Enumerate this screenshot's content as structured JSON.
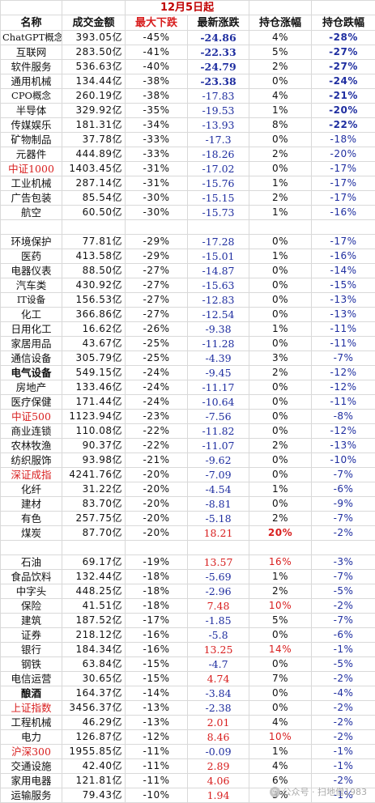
{
  "title": "12月5日起",
  "headers": [
    "名称",
    "成交金额",
    "最大下跌",
    "最新涨跌",
    "持仓涨幅",
    "持仓跌幅"
  ],
  "rows": [
    {
      "name": "ChatGPT概念",
      "vol": "393.05亿",
      "dd": "-45%",
      "chg": "-24.86",
      "hp": "4%",
      "hd": "-28%"
    },
    {
      "name": "互联网",
      "vol": "283.50亿",
      "dd": "-41%",
      "chg": "-22.33",
      "hp": "5%",
      "hd": "-27%"
    },
    {
      "name": "软件服务",
      "vol": "536.63亿",
      "dd": "-40%",
      "chg": "-24.79",
      "hp": "2%",
      "hd": "-27%"
    },
    {
      "name": "通用机械",
      "vol": "134.44亿",
      "dd": "-38%",
      "chg": "-23.38",
      "hp": "0%",
      "hd": "-24%"
    },
    {
      "name": "CPO概念",
      "vol": "260.19亿",
      "dd": "-38%",
      "chg": "-17.83",
      "hp": "4%",
      "hd": "-21%"
    },
    {
      "name": "半导体",
      "vol": "329.92亿",
      "dd": "-35%",
      "chg": "-19.53",
      "hp": "1%",
      "hd": "-20%"
    },
    {
      "name": "传媒娱乐",
      "vol": "181.31亿",
      "dd": "-34%",
      "chg": "-13.93",
      "hp": "8%",
      "hd": "-22%"
    },
    {
      "name": "矿物制品",
      "vol": "37.78亿",
      "dd": "-33%",
      "chg": "-17.3",
      "hp": "0%",
      "hd": "-18%"
    },
    {
      "name": "元器件",
      "vol": "444.89亿",
      "dd": "-33%",
      "chg": "-18.26",
      "hp": "2%",
      "hd": "-20%"
    },
    {
      "name": "中证1000",
      "vol": "1403.45亿",
      "dd": "-31%",
      "chg": "-17.02",
      "hp": "0%",
      "hd": "-17%"
    },
    {
      "name": "工业机械",
      "vol": "287.14亿",
      "dd": "-31%",
      "chg": "-15.76",
      "hp": "1%",
      "hd": "-17%"
    },
    {
      "name": "广告包装",
      "vol": "85.54亿",
      "dd": "-30%",
      "chg": "-15.15",
      "hp": "2%",
      "hd": "-17%"
    },
    {
      "name": "航空",
      "vol": "60.50亿",
      "dd": "-30%",
      "chg": "-15.73",
      "hp": "1%",
      "hd": "-16%"
    },
    {
      "blank": true
    },
    {
      "name": "环境保护",
      "vol": "77.81亿",
      "dd": "-29%",
      "chg": "-17.28",
      "hp": "0%",
      "hd": "-17%"
    },
    {
      "name": "医药",
      "vol": "413.58亿",
      "dd": "-29%",
      "chg": "-15.01",
      "hp": "1%",
      "hd": "-16%"
    },
    {
      "name": "电器仪表",
      "vol": "88.50亿",
      "dd": "-27%",
      "chg": "-14.87",
      "hp": "0%",
      "hd": "-14%"
    },
    {
      "name": "汽车类",
      "vol": "430.92亿",
      "dd": "-27%",
      "chg": "-15.63",
      "hp": "0%",
      "hd": "-15%"
    },
    {
      "name": "IT设备",
      "vol": "156.53亿",
      "dd": "-27%",
      "chg": "-12.83",
      "hp": "0%",
      "hd": "-13%"
    },
    {
      "name": "化工",
      "vol": "366.86亿",
      "dd": "-27%",
      "chg": "-12.54",
      "hp": "0%",
      "hd": "-13%"
    },
    {
      "name": "日用化工",
      "vol": "16.62亿",
      "dd": "-26%",
      "chg": "-9.38",
      "hp": "1%",
      "hd": "-11%"
    },
    {
      "name": "家居用品",
      "vol": "43.67亿",
      "dd": "-25%",
      "chg": "-11.28",
      "hp": "0%",
      "hd": "-11%"
    },
    {
      "name": "通信设备",
      "vol": "305.79亿",
      "dd": "-25%",
      "chg": "-4.39",
      "hp": "3%",
      "hd": "-7%"
    },
    {
      "name": "电气设备",
      "vol": "549.15亿",
      "dd": "-24%",
      "chg": "-9.45",
      "hp": "2%",
      "hd": "-12%"
    },
    {
      "name": "房地产",
      "vol": "133.46亿",
      "dd": "-24%",
      "chg": "-11.17",
      "hp": "0%",
      "hd": "-12%"
    },
    {
      "name": "医疗保健",
      "vol": "171.44亿",
      "dd": "-24%",
      "chg": "-10.64",
      "hp": "0%",
      "hd": "-11%"
    },
    {
      "name": "中证500",
      "vol": "1123.94亿",
      "dd": "-23%",
      "chg": "-7.56",
      "hp": "0%",
      "hd": "-8%"
    },
    {
      "name": "商业连锁",
      "vol": "110.08亿",
      "dd": "-22%",
      "chg": "-11.82",
      "hp": "0%",
      "hd": "-12%"
    },
    {
      "name": "农林牧渔",
      "vol": "90.37亿",
      "dd": "-22%",
      "chg": "-11.07",
      "hp": "2%",
      "hd": "-13%"
    },
    {
      "name": "纺织服饰",
      "vol": "93.98亿",
      "dd": "-21%",
      "chg": "-9.62",
      "hp": "0%",
      "hd": "-10%"
    },
    {
      "name": "深证成指",
      "vol": "4241.76亿",
      "dd": "-20%",
      "chg": "-7.09",
      "hp": "0%",
      "hd": "-7%"
    },
    {
      "name": "化纤",
      "vol": "31.22亿",
      "dd": "-20%",
      "chg": "-4.54",
      "hp": "1%",
      "hd": "-6%"
    },
    {
      "name": "建材",
      "vol": "83.70亿",
      "dd": "-20%",
      "chg": "-8.81",
      "hp": "0%",
      "hd": "-9%"
    },
    {
      "name": "有色",
      "vol": "257.75亿",
      "dd": "-20%",
      "chg": "-5.18",
      "hp": "2%",
      "hd": "-7%"
    },
    {
      "name": "煤炭",
      "vol": "87.70亿",
      "dd": "-20%",
      "chg": "18.21",
      "hp": "20%",
      "hd": "-2%"
    },
    {
      "blank": true
    },
    {
      "name": "石油",
      "vol": "69.17亿",
      "dd": "-19%",
      "chg": "13.57",
      "hp": "16%",
      "hd": "-3%"
    },
    {
      "name": "食品饮料",
      "vol": "132.44亿",
      "dd": "-18%",
      "chg": "-5.69",
      "hp": "1%",
      "hd": "-7%"
    },
    {
      "name": "中字头",
      "vol": "448.25亿",
      "dd": "-18%",
      "chg": "-2.96",
      "hp": "2%",
      "hd": "-5%"
    },
    {
      "name": "保险",
      "vol": "41.51亿",
      "dd": "-18%",
      "chg": "7.48",
      "hp": "10%",
      "hd": "-2%"
    },
    {
      "name": "建筑",
      "vol": "187.52亿",
      "dd": "-17%",
      "chg": "-1.85",
      "hp": "5%",
      "hd": "-7%"
    },
    {
      "name": "证券",
      "vol": "218.12亿",
      "dd": "-16%",
      "chg": "-5.8",
      "hp": "0%",
      "hd": "-6%"
    },
    {
      "name": "银行",
      "vol": "184.34亿",
      "dd": "-16%",
      "chg": "13.25",
      "hp": "14%",
      "hd": "-1%"
    },
    {
      "name": "钢铁",
      "vol": "63.84亿",
      "dd": "-15%",
      "chg": "-4.7",
      "hp": "0%",
      "hd": "-5%"
    },
    {
      "name": "电信运营",
      "vol": "30.65亿",
      "dd": "-15%",
      "chg": "4.74",
      "hp": "7%",
      "hd": "-2%"
    },
    {
      "name": "酿酒",
      "vol": "164.37亿",
      "dd": "-14%",
      "chg": "-3.84",
      "hp": "0%",
      "hd": "-4%"
    },
    {
      "name": "上证指数",
      "vol": "3456.37亿",
      "dd": "-13%",
      "chg": "-2.38",
      "hp": "0%",
      "hd": "-2%"
    },
    {
      "name": "工程机械",
      "vol": "46.29亿",
      "dd": "-13%",
      "chg": "2.01",
      "hp": "4%",
      "hd": "-2%"
    },
    {
      "name": "电力",
      "vol": "126.87亿",
      "dd": "-12%",
      "chg": "8.46",
      "hp": "10%",
      "hd": "-2%"
    },
    {
      "name": "沪深300",
      "vol": "1955.85亿",
      "dd": "-11%",
      "chg": "-0.09",
      "hp": "1%",
      "hd": "-1%"
    },
    {
      "name": "交通设施",
      "vol": "42.40亿",
      "dd": "-11%",
      "chg": "2.89",
      "hp": "4%",
      "hd": "-1%"
    },
    {
      "name": "家用电器",
      "vol": "121.81亿",
      "dd": "-11%",
      "chg": "4.06",
      "hp": "6%",
      "hd": "-2%"
    },
    {
      "name": "运输服务",
      "vol": "79.43亿",
      "dd": "-10%",
      "chg": "1.94",
      "hp": "3%",
      "hd": "-1%"
    }
  ],
  "watermark": {
    "icon": "wechat-icon",
    "text": "公众号 · 扫地僧1983"
  },
  "colors": {
    "title": "#c00000",
    "negative": "#1f2ea0",
    "positive": "#d81e1e",
    "index": "#d81e1e"
  }
}
